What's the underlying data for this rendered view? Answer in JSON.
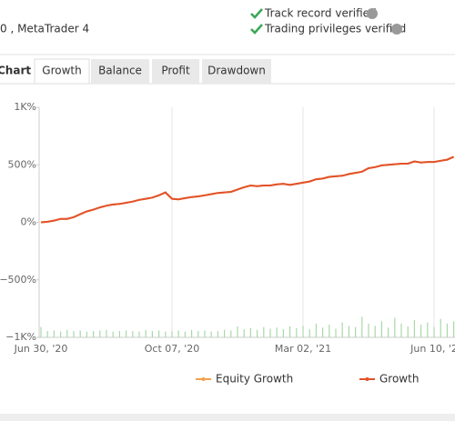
{
  "header": {
    "account": "0 , MetaTrader 4",
    "badges": [
      "Track record verified",
      "Trading privileges verified"
    ]
  },
  "tabs": {
    "title": "Chart",
    "items": [
      "Growth",
      "Balance",
      "Profit",
      "Drawdown"
    ],
    "active_index": 0
  },
  "chart_data": {
    "type": "line",
    "categories": [
      "Jun 30, '20",
      null,
      null,
      null,
      null,
      null,
      null,
      null,
      null,
      null,
      null,
      null,
      null,
      null,
      null,
      null,
      null,
      null,
      null,
      null,
      "Oct 07, '20",
      null,
      null,
      null,
      null,
      null,
      null,
      null,
      null,
      null,
      null,
      null,
      null,
      null,
      null,
      null,
      null,
      null,
      null,
      null,
      "Mar 02, '21",
      null,
      null,
      null,
      null,
      null,
      null,
      null,
      null,
      null,
      null,
      null,
      null,
      null,
      null,
      null,
      null,
      null,
      null,
      null,
      "Jun 10, '2",
      null,
      null,
      null
    ],
    "series": [
      {
        "name": "Equity Growth",
        "color": "#f5a04a",
        "values": [
          0,
          5,
          15,
          30,
          30,
          45,
          70,
          95,
          110,
          130,
          145,
          155,
          160,
          170,
          180,
          195,
          205,
          215,
          235,
          260,
          205,
          200,
          210,
          220,
          225,
          235,
          245,
          255,
          260,
          265,
          285,
          305,
          320,
          315,
          320,
          320,
          330,
          335,
          325,
          335,
          345,
          355,
          375,
          380,
          395,
          400,
          405,
          420,
          430,
          440,
          470,
          480,
          495,
          500,
          505,
          510,
          510,
          530,
          520,
          525,
          525,
          535,
          545,
          570
        ]
      },
      {
        "name": "Growth",
        "color": "#e2522a",
        "values": [
          0,
          5,
          15,
          30,
          30,
          45,
          70,
          95,
          110,
          130,
          145,
          155,
          160,
          170,
          180,
          195,
          205,
          215,
          235,
          260,
          205,
          200,
          210,
          220,
          225,
          235,
          245,
          255,
          260,
          265,
          285,
          305,
          320,
          315,
          320,
          320,
          330,
          335,
          325,
          335,
          345,
          355,
          375,
          380,
          395,
          400,
          405,
          420,
          430,
          440,
          470,
          480,
          495,
          500,
          505,
          510,
          510,
          530,
          520,
          525,
          525,
          535,
          545,
          570
        ]
      },
      {
        "type": "bar",
        "color": "#a9d8a9",
        "values": [
          -910,
          -945,
          -940,
          -950,
          -935,
          -945,
          -940,
          -950,
          -945,
          -940,
          -935,
          -950,
          -945,
          -940,
          -945,
          -950,
          -935,
          -945,
          -940,
          -950,
          -945,
          -940,
          -950,
          -935,
          -945,
          -940,
          -950,
          -945,
          -935,
          -940,
          -905,
          -930,
          -920,
          -935,
          -910,
          -925,
          -915,
          -930,
          -905,
          -920,
          -900,
          -930,
          -880,
          -915,
          -890,
          -925,
          -870,
          -900,
          -910,
          -820,
          -880,
          -900,
          -860,
          -915,
          -830,
          -880,
          -905,
          -850,
          -890,
          -870,
          -910,
          -840,
          -880,
          -860
        ]
      }
    ],
    "ylim": [
      -1000,
      1000
    ],
    "yticks": [
      {
        "value": -1000,
        "label": "−1K%"
      },
      {
        "value": -500,
        "label": "−500%"
      },
      {
        "value": 0,
        "label": "0%"
      },
      {
        "value": 500,
        "label": "500%"
      },
      {
        "value": 1000,
        "label": "1K%"
      }
    ],
    "grid": true,
    "legend": "bottom"
  }
}
